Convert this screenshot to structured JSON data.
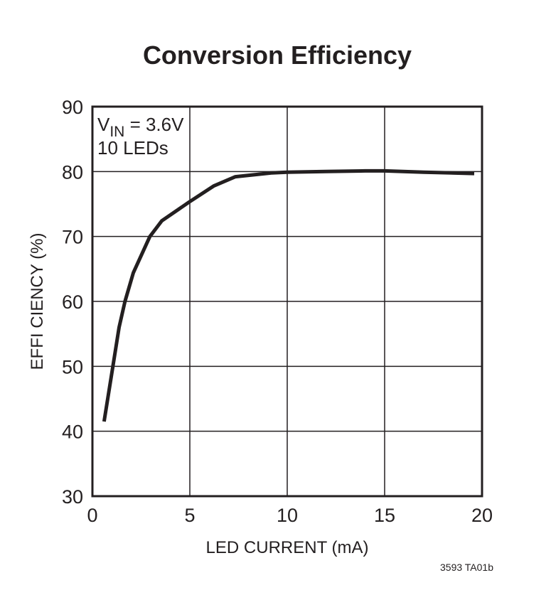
{
  "chart_data": {
    "type": "line",
    "title": "Conversion Efficiency",
    "xlabel": "LED CURRENT (mA)",
    "ylabel": "EFFI CIENCY (%)",
    "xlim": [
      0,
      20
    ],
    "ylim": [
      30,
      90
    ],
    "xticks": [
      0,
      5,
      10,
      15,
      20
    ],
    "yticks": [
      30,
      40,
      50,
      60,
      70,
      80,
      90
    ],
    "grid": true,
    "annotation": {
      "line1_main": "V",
      "line1_sub": "IN",
      "line1_rest": " = 3.6V",
      "line2": "10 LEDs"
    },
    "footnote": "3593 TA01b",
    "line_color": "#231f20",
    "series": [
      {
        "x": [
          0.6,
          1.05,
          1.37,
          1.67,
          2.1,
          2.95,
          3.56,
          4.96,
          6.24,
          7.34,
          9.2,
          10,
          12,
          14,
          15,
          17,
          19.6
        ],
        "y": [
          41.5,
          50,
          56,
          60,
          64.4,
          70,
          72.4,
          75.3,
          77.8,
          79.2,
          79.8,
          79.9,
          80.0,
          80.1,
          80.1,
          79.9,
          79.7
        ]
      }
    ]
  }
}
